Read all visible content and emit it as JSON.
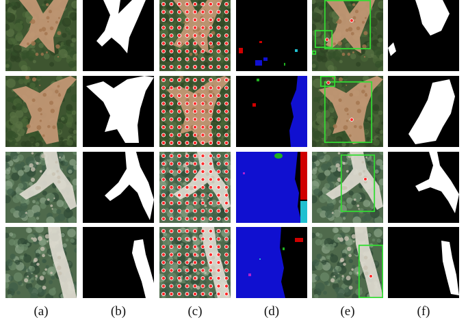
{
  "figure": {
    "column_labels": [
      "(a)",
      "(b)",
      "(c)",
      "(d)",
      "(e)",
      "(f)"
    ],
    "rows": [
      {
        "scene": "landslide-dense-forest-1"
      },
      {
        "scene": "landslide-dense-forest-2"
      },
      {
        "scene": "landslide-light-forest-1"
      },
      {
        "scene": "landslide-light-forest-2"
      }
    ],
    "colors": {
      "mask_fg": "#ffffff",
      "mask_bg": "#000000",
      "point_marker": "#ff2a2a",
      "box": "#33dd33",
      "segment_blue": "#1010d0",
      "segment_red": "#d00000",
      "segment_cyan": "#20c0d0",
      "segment_green": "#20b020",
      "segment_magenta": "#b020d0"
    }
  }
}
